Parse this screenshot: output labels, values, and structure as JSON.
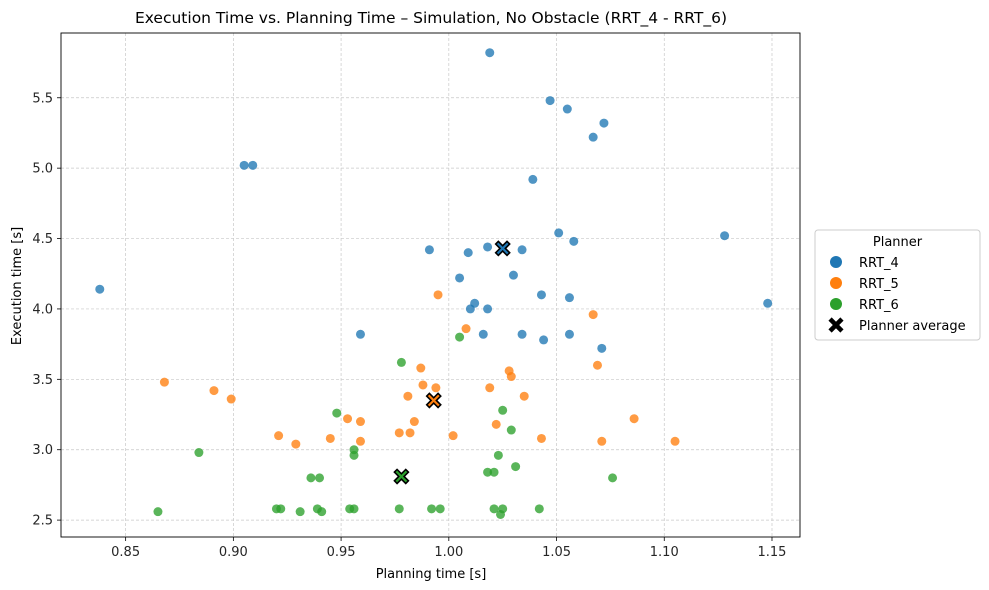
{
  "chart_data": {
    "type": "scatter",
    "title": "Execution Time vs. Planning Time – Simulation, No Obstacle (RRT_4 - RRT_6)",
    "xlabel": "Planning time [s]",
    "ylabel": "Execution time [s]",
    "xlim": [
      0.82,
      1.163
    ],
    "ylim": [
      2.38,
      5.96
    ],
    "xticks": [
      0.85,
      0.9,
      0.95,
      1.0,
      1.05,
      1.1,
      1.15
    ],
    "xtick_labels": [
      "0.85",
      "0.90",
      "0.95",
      "1.00",
      "1.05",
      "1.10",
      "1.15"
    ],
    "yticks": [
      2.5,
      3.0,
      3.5,
      4.0,
      4.5,
      5.0,
      5.5
    ],
    "ytick_labels": [
      "2.5",
      "3.0",
      "3.5",
      "4.0",
      "4.5",
      "5.0",
      "5.5"
    ],
    "grid": true,
    "legend": {
      "title": "Planner",
      "placement": "outside-right",
      "entries": [
        "RRT_4",
        "RRT_5",
        "RRT_6",
        "Planner average"
      ]
    },
    "series": [
      {
        "name": "RRT_4",
        "color": "#1f77b4",
        "points": [
          [
            1.019,
            5.82
          ],
          [
            1.047,
            5.48
          ],
          [
            1.055,
            5.42
          ],
          [
            1.072,
            5.32
          ],
          [
            1.067,
            5.22
          ],
          [
            0.905,
            5.02
          ],
          [
            0.909,
            5.02
          ],
          [
            1.039,
            4.92
          ],
          [
            1.051,
            4.54
          ],
          [
            1.128,
            4.52
          ],
          [
            1.058,
            4.48
          ],
          [
            1.018,
            4.44
          ],
          [
            0.991,
            4.42
          ],
          [
            1.009,
            4.4
          ],
          [
            1.034,
            4.42
          ],
          [
            1.03,
            4.24
          ],
          [
            1.005,
            4.22
          ],
          [
            0.838,
            4.14
          ],
          [
            1.043,
            4.1
          ],
          [
            1.056,
            4.08
          ],
          [
            1.012,
            4.04
          ],
          [
            1.148,
            4.04
          ],
          [
            1.01,
            4.0
          ],
          [
            1.018,
            4.0
          ],
          [
            0.959,
            3.82
          ],
          [
            1.016,
            3.82
          ],
          [
            1.034,
            3.82
          ],
          [
            1.056,
            3.82
          ],
          [
            1.044,
            3.78
          ],
          [
            1.071,
            3.72
          ]
        ],
        "average": [
          1.025,
          4.43
        ]
      },
      {
        "name": "RRT_5",
        "color": "#ff7f0e",
        "points": [
          [
            0.995,
            4.1
          ],
          [
            1.067,
            3.96
          ],
          [
            1.008,
            3.86
          ],
          [
            1.069,
            3.6
          ],
          [
            0.987,
            3.58
          ],
          [
            1.028,
            3.56
          ],
          [
            1.029,
            3.52
          ],
          [
            0.868,
            3.48
          ],
          [
            0.988,
            3.46
          ],
          [
            0.994,
            3.44
          ],
          [
            1.019,
            3.44
          ],
          [
            0.891,
            3.42
          ],
          [
            0.981,
            3.38
          ],
          [
            1.035,
            3.38
          ],
          [
            0.899,
            3.36
          ],
          [
            1.086,
            3.22
          ],
          [
            0.953,
            3.22
          ],
          [
            0.959,
            3.2
          ],
          [
            0.984,
            3.2
          ],
          [
            1.022,
            3.18
          ],
          [
            0.977,
            3.12
          ],
          [
            0.982,
            3.12
          ],
          [
            0.921,
            3.1
          ],
          [
            1.002,
            3.1
          ],
          [
            0.945,
            3.08
          ],
          [
            1.043,
            3.08
          ],
          [
            0.959,
            3.06
          ],
          [
            1.071,
            3.06
          ],
          [
            1.105,
            3.06
          ],
          [
            0.929,
            3.04
          ]
        ],
        "average": [
          0.993,
          3.35
        ]
      },
      {
        "name": "RRT_6",
        "color": "#2ca02c",
        "points": [
          [
            0.978,
            3.62
          ],
          [
            1.005,
            3.8
          ],
          [
            1.025,
            3.28
          ],
          [
            0.948,
            3.26
          ],
          [
            1.029,
            3.14
          ],
          [
            0.956,
            3.0
          ],
          [
            0.884,
            2.98
          ],
          [
            0.956,
            2.96
          ],
          [
            1.023,
            2.96
          ],
          [
            1.031,
            2.88
          ],
          [
            1.018,
            2.84
          ],
          [
            1.021,
            2.84
          ],
          [
            0.936,
            2.8
          ],
          [
            0.94,
            2.8
          ],
          [
            1.076,
            2.8
          ],
          [
            0.92,
            2.58
          ],
          [
            0.922,
            2.58
          ],
          [
            0.939,
            2.58
          ],
          [
            0.954,
            2.58
          ],
          [
            0.956,
            2.58
          ],
          [
            0.977,
            2.58
          ],
          [
            0.992,
            2.58
          ],
          [
            0.996,
            2.58
          ],
          [
            1.021,
            2.58
          ],
          [
            1.025,
            2.58
          ],
          [
            1.042,
            2.58
          ],
          [
            0.865,
            2.56
          ],
          [
            0.931,
            2.56
          ],
          [
            0.941,
            2.56
          ],
          [
            1.024,
            2.54
          ]
        ],
        "average": [
          0.978,
          2.81
        ]
      }
    ]
  }
}
